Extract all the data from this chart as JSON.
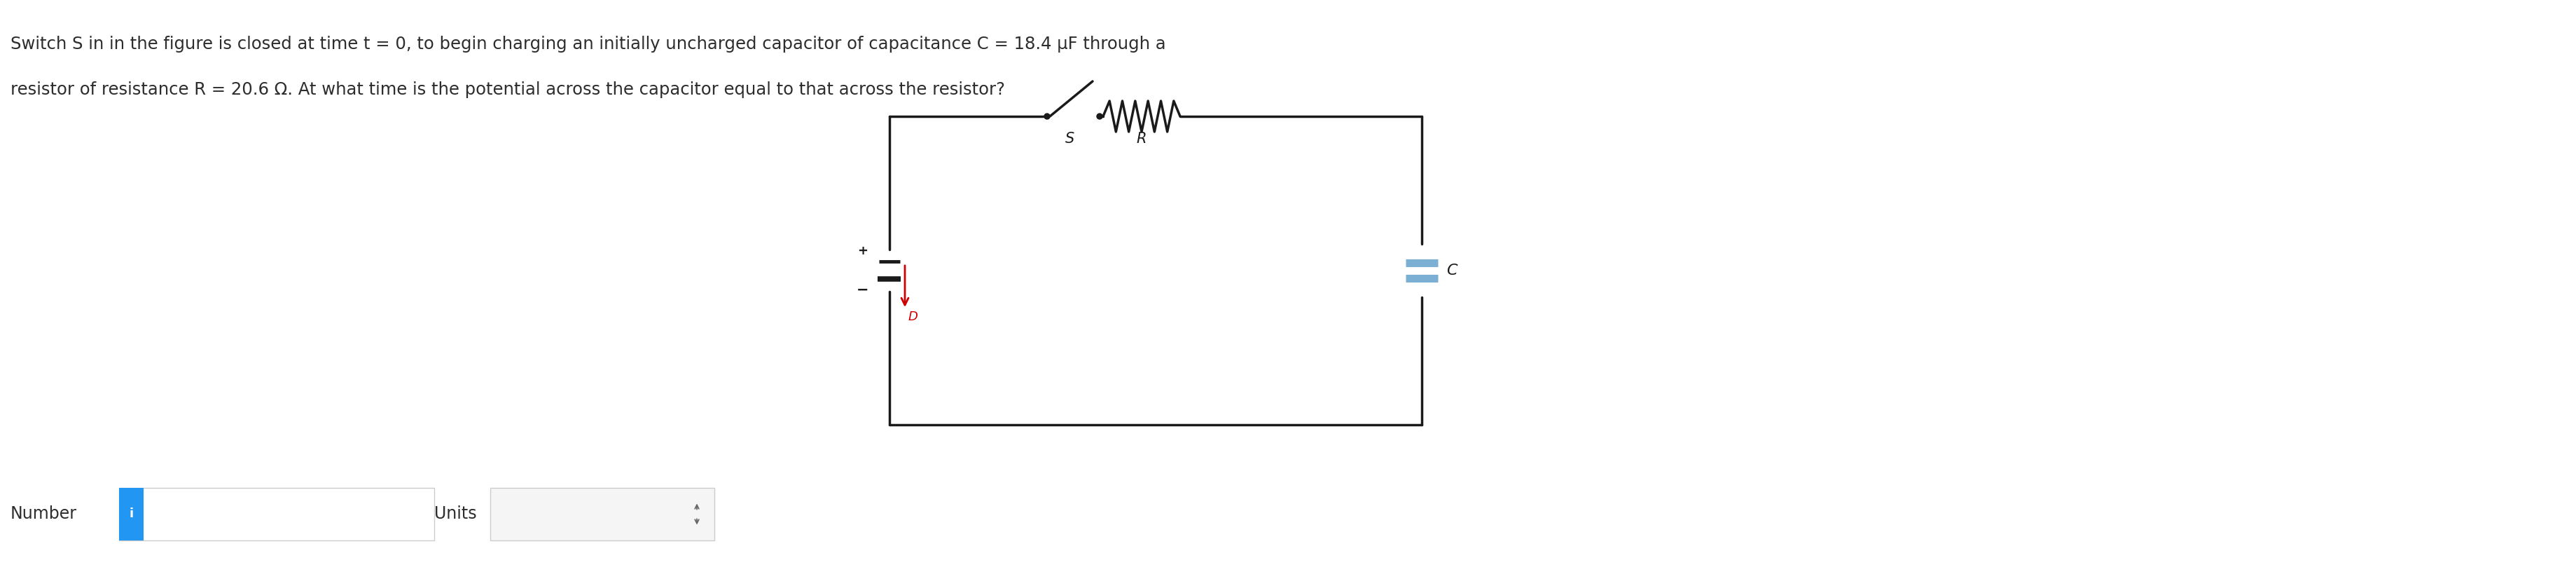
{
  "text_line1": "Switch S in in the figure is closed at time t = 0, to begin charging an initially uncharged capacitor of capacitance C = 18.4 μF through a",
  "text_line2": "resistor of resistance R = 20.6 Ω. At what time is the potential across the capacitor equal to that across the resistor?",
  "label_number": "Number",
  "label_units": "Units",
  "label_R": "R",
  "label_S": "S",
  "label_C": "C",
  "label_plus": "+",
  "label_minus": "−",
  "label_D": "D",
  "bg_color": "#ffffff",
  "text_color": "#2d2d2d",
  "circuit_color": "#1a1a1a",
  "blue_color": "#2196F3",
  "input_bg": "#f5f5f5",
  "input_border": "#cccccc",
  "capacitor_color": "#7bafd4",
  "arrow_color": "#cc0000",
  "font_size_main": 17.5,
  "font_size_label": 17,
  "font_size_circuit": 15
}
